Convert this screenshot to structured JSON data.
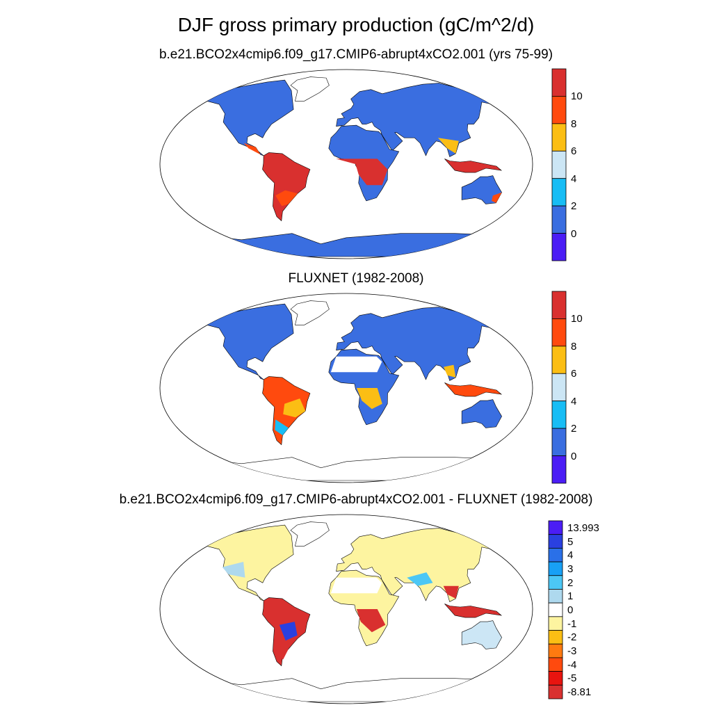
{
  "figure": {
    "title": "DJF gross primary production (gC/m^2/d)"
  },
  "panels": [
    {
      "id": "model",
      "title": "b.e21.BCO2x4cmip6.f09_g17.CMIP6-abrupt4xCO2.001 (yrs 75-99)",
      "colorbar": {
        "labels": [
          "0",
          "2",
          "4",
          "6",
          "8",
          "10"
        ],
        "colors": [
          "#4b1df5",
          "#3a6ee0",
          "#18bdf5",
          "#cce6f5",
          "#fbbe14",
          "#ff4a0e",
          "#d9302f"
        ]
      }
    },
    {
      "id": "fluxnet",
      "title": "FLUXNET (1982-2008)",
      "colorbar": {
        "labels": [
          "0",
          "2",
          "4",
          "6",
          "8",
          "10"
        ],
        "colors": [
          "#4b1df5",
          "#3a6ee0",
          "#18bdf5",
          "#cce6f5",
          "#fbbe14",
          "#ff4a0e",
          "#d9302f"
        ]
      }
    },
    {
      "id": "difference",
      "title": "b.e21.BCO2x4cmip6.f09_g17.CMIP6-abrupt4xCO2.001 - FLUXNET (1982-2008)",
      "colorbar": {
        "labels": [
          "13.993",
          "5",
          "4",
          "3",
          "2",
          "1",
          "0",
          "-1",
          "-2",
          "-3",
          "-4",
          "-5",
          "-8.81"
        ],
        "colors": [
          "#d9302f",
          "#e8140f",
          "#ff4a0e",
          "#ff7a10",
          "#fbbe14",
          "#fdf4a0",
          "#ffffff",
          "#aed9ee",
          "#4cc7f5",
          "#18a0f5",
          "#2a70e8",
          "#2a40e0",
          "#4b1df5"
        ]
      }
    }
  ]
}
